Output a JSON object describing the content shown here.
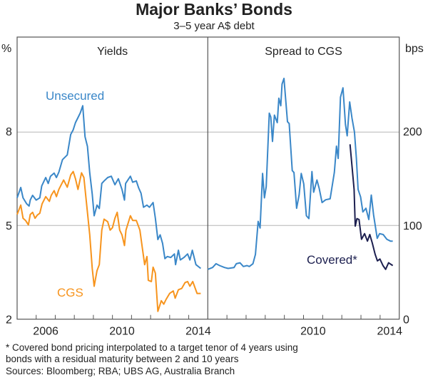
{
  "chart_data": [
    {
      "type": "line",
      "panel_title": "Yields",
      "unit_label": "%",
      "xlim": [
        2005,
        2015
      ],
      "ylim": [
        2,
        11
      ],
      "yticks": [
        2,
        5,
        8
      ],
      "xtick_labels": [
        "2006",
        "2010",
        "2014"
      ],
      "grid": true,
      "series": [
        {
          "name": "Unsecured",
          "color": "#3a87c8",
          "x": [
            2005.0,
            2005.19,
            2005.31,
            2005.5,
            2005.63,
            2005.69,
            2005.81,
            2006.0,
            2006.19,
            2006.29,
            2006.5,
            2006.63,
            2006.75,
            2006.94,
            2007.06,
            2007.19,
            2007.38,
            2007.63,
            2007.81,
            2007.94,
            2008.06,
            2008.19,
            2008.31,
            2008.44,
            2008.56,
            2008.69,
            2008.81,
            2008.94,
            2009.04,
            2009.19,
            2009.31,
            2009.44,
            2009.56,
            2009.75,
            2009.94,
            2010.13,
            2010.31,
            2010.5,
            2010.63,
            2010.69,
            2010.94,
            2011.06,
            2011.25,
            2011.38,
            2011.5,
            2011.63,
            2011.81,
            2011.94,
            2012.13,
            2012.25,
            2012.38,
            2012.5,
            2012.63,
            2012.75,
            2012.88,
            2013.06,
            2013.25,
            2013.31,
            2013.46,
            2013.56,
            2013.75,
            2013.94,
            2014.06,
            2014.19,
            2014.38,
            2014.63
          ],
          "y": [
            5.87,
            6.2,
            5.87,
            5.68,
            5.61,
            5.8,
            5.95,
            5.8,
            5.87,
            6.25,
            6.52,
            6.33,
            6.56,
            6.66,
            6.52,
            6.69,
            7.09,
            7.24,
            7.89,
            8.04,
            8.27,
            8.43,
            8.58,
            8.81,
            7.82,
            7.51,
            6.67,
            5.99,
            5.3,
            5.64,
            5.53,
            6.33,
            6.41,
            6.52,
            6.56,
            6.29,
            6.48,
            6.14,
            5.8,
            6.33,
            6.56,
            6.37,
            6.41,
            6.18,
            6.02,
            5.57,
            5.64,
            5.57,
            5.72,
            5.22,
            4.54,
            4.69,
            4.42,
            3.93,
            4.0,
            3.97,
            4.08,
            3.74,
            4.2,
            3.89,
            3.97,
            4.08,
            3.89,
            4.2,
            3.74,
            3.62
          ]
        },
        {
          "name": "CGS",
          "color": "#f7941d",
          "x": [
            2005.0,
            2005.19,
            2005.31,
            2005.44,
            2005.59,
            2005.69,
            2005.81,
            2005.94,
            2006.06,
            2006.19,
            2006.31,
            2006.5,
            2006.69,
            2006.79,
            2006.94,
            2007.06,
            2007.19,
            2007.44,
            2007.63,
            2007.81,
            2007.94,
            2008.06,
            2008.19,
            2008.38,
            2008.5,
            2008.63,
            2008.81,
            2008.94,
            2009.04,
            2009.19,
            2009.31,
            2009.44,
            2009.56,
            2009.75,
            2009.88,
            2010.0,
            2010.13,
            2010.25,
            2010.38,
            2010.5,
            2010.63,
            2010.71,
            2010.94,
            2011.06,
            2011.25,
            2011.44,
            2011.56,
            2011.69,
            2011.81,
            2011.88,
            2012.04,
            2012.13,
            2012.25,
            2012.38,
            2012.56,
            2012.69,
            2012.81,
            2013.0,
            2013.19,
            2013.29,
            2013.46,
            2013.63,
            2013.81,
            2013.94,
            2014.06,
            2014.21,
            2014.44,
            2014.63
          ],
          "y": [
            5.34,
            5.64,
            5.22,
            5.15,
            5.01,
            5.34,
            5.41,
            5.22,
            5.32,
            5.38,
            5.68,
            5.91,
            5.76,
            5.95,
            6.1,
            5.91,
            6.14,
            6.44,
            6.21,
            6.6,
            6.71,
            6.48,
            6.14,
            6.67,
            6.52,
            5.76,
            4.69,
            3.62,
            3.05,
            3.55,
            3.74,
            4.84,
            5.19,
            5.11,
            4.84,
            4.92,
            5.22,
            5.41,
            4.84,
            4.69,
            4.35,
            4.84,
            5.3,
            5.15,
            5.15,
            4.84,
            4.31,
            3.74,
            4.0,
            3.24,
            3.2,
            3.66,
            3.47,
            2.25,
            2.59,
            2.48,
            2.63,
            2.82,
            2.9,
            2.67,
            2.94,
            2.98,
            3.17,
            3.2,
            3.05,
            3.2,
            2.82,
            2.82
          ]
        }
      ]
    },
    {
      "type": "line",
      "panel_title": "Spread to CGS",
      "unit_label": "bps",
      "xlim": [
        2005,
        2015
      ],
      "ylim": [
        0,
        300
      ],
      "yticks": [
        0,
        100,
        200
      ],
      "xtick_labels": [
        "2010",
        "2014"
      ],
      "grid": true,
      "series": [
        {
          "name": "Unsecured",
          "color": "#3a87c8",
          "x": [
            2005.0,
            2005.25,
            2005.43,
            2005.62,
            2005.87,
            2006.06,
            2006.37,
            2006.49,
            2006.68,
            2006.86,
            2007.05,
            2007.17,
            2007.36,
            2007.49,
            2007.63,
            2007.73,
            2007.86,
            2007.96,
            2008.05,
            2008.21,
            2008.29,
            2008.38,
            2008.48,
            2008.63,
            2008.71,
            2008.81,
            2008.88,
            2008.98,
            2009.16,
            2009.25,
            2009.41,
            2009.5,
            2009.64,
            2009.77,
            2009.88,
            2010.01,
            2010.15,
            2010.28,
            2010.44,
            2010.53,
            2010.7,
            2010.82,
            2010.97,
            2011.16,
            2011.39,
            2011.61,
            2011.72,
            2011.81,
            2011.93,
            2012.06,
            2012.19,
            2012.28,
            2012.41,
            2012.53,
            2012.66,
            2012.76,
            2012.85,
            2012.98,
            2013.1,
            2013.26,
            2013.41,
            2013.54,
            2013.66,
            2013.85,
            2013.97,
            2014.16,
            2014.35,
            2014.54,
            2014.66
          ],
          "y": [
            53,
            55,
            59,
            57,
            55,
            54,
            55,
            59,
            60,
            56,
            57,
            56,
            59,
            69,
            104,
            97,
            155,
            129,
            141,
            219,
            215,
            189,
            217,
            209,
            235,
            227,
            250,
            256,
            210,
            208,
            158,
            156,
            118,
            132,
            155,
            144,
            110,
            107,
            157,
            135,
            148,
            139,
            124,
            127,
            128,
            156,
            184,
            171,
            236,
            246,
            207,
            195,
            231,
            214,
            199,
            171,
            138,
            130,
            114,
            118,
            106,
            132,
            111,
            86,
            91,
            90,
            85,
            83,
            83
          ]
        },
        {
          "name": "Covered*",
          "color": "#1c1f4f",
          "x": [
            2012.43,
            2012.64,
            2012.7,
            2012.79,
            2012.9,
            2013.03,
            2013.19,
            2013.34,
            2013.46,
            2013.59,
            2013.74,
            2013.86,
            2013.99,
            2014.15,
            2014.29,
            2014.44,
            2014.66
          ],
          "y": [
            186,
            138,
            99,
            107,
            106,
            85,
            91,
            83,
            90,
            81,
            69,
            62,
            64,
            57,
            53,
            60,
            57
          ]
        }
      ]
    }
  ],
  "title": "Major Banks’ Bonds",
  "subtitle": "3–5 year A$ debt",
  "footnotes": [
    "*    Covered bond pricing interpolated to a target tenor of 4 years using",
    "      bonds with a residual maturity between 2 and 10 years",
    "Sources: Bloomberg; RBA; UBS AG, Australia Branch"
  ]
}
